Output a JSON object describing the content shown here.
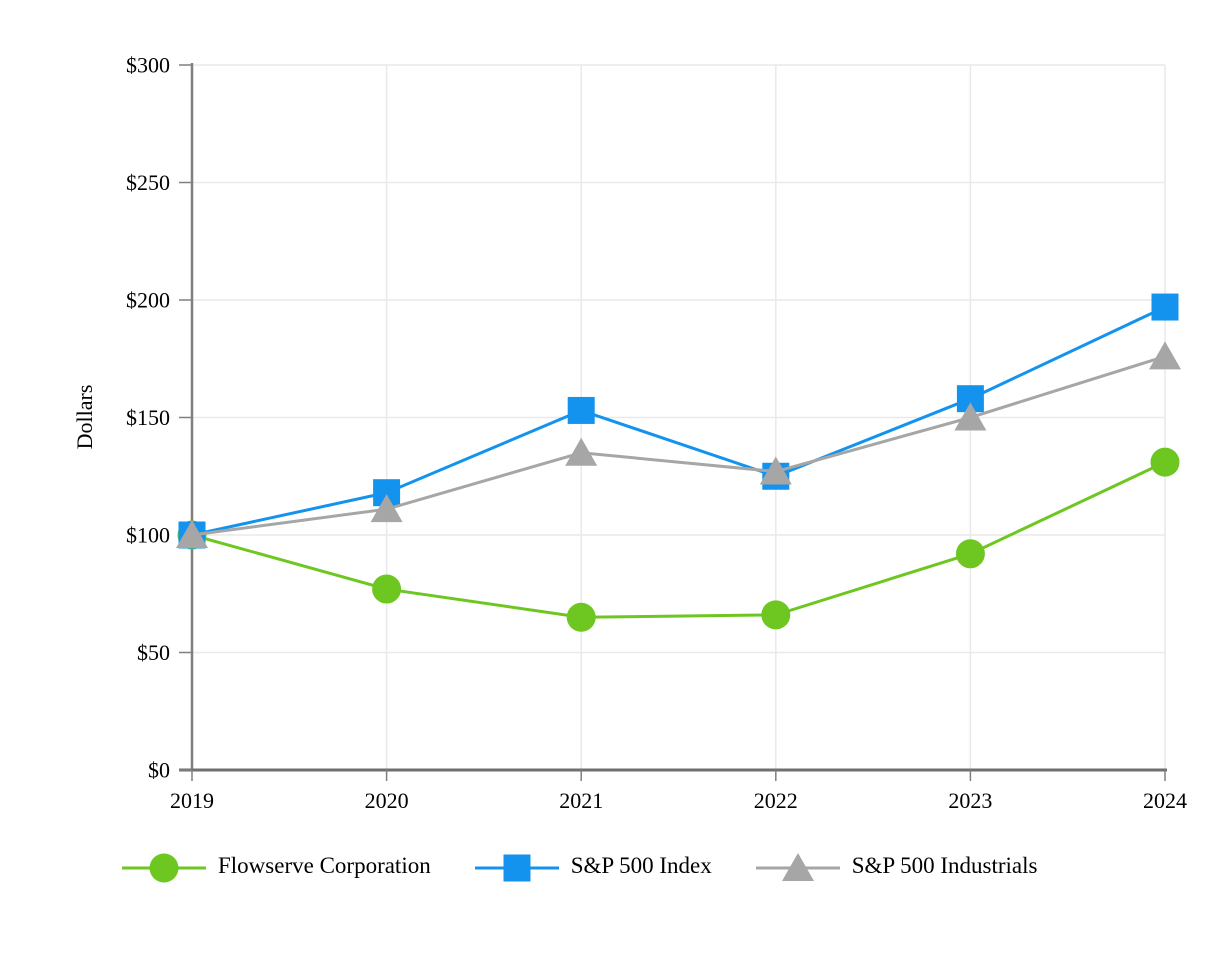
{
  "chart_data": {
    "type": "line",
    "title": "",
    "xlabel": "",
    "ylabel": "Dollars",
    "categories": [
      "2019",
      "2020",
      "2021",
      "2022",
      "2023",
      "2024"
    ],
    "ylim": [
      0,
      300
    ],
    "grid": true,
    "legend_position": "bottom",
    "y_ticks": [
      {
        "value": 0,
        "label": "$0"
      },
      {
        "value": 50,
        "label": "$50"
      },
      {
        "value": 100,
        "label": "$100"
      },
      {
        "value": 150,
        "label": "$150"
      },
      {
        "value": 200,
        "label": "$200"
      },
      {
        "value": 250,
        "label": "$250"
      },
      {
        "value": 300,
        "label": "$300"
      }
    ],
    "series": [
      {
        "name": "Flowserve Corporation",
        "marker": "circle",
        "color": "#6EC621",
        "values": [
          100,
          77,
          65,
          66,
          92,
          131
        ]
      },
      {
        "name": "S&P 500 Index",
        "marker": "square",
        "color": "#1493EE",
        "values": [
          100,
          118,
          153,
          125,
          158,
          197
        ]
      },
      {
        "name": "S&P 500 Industrials",
        "marker": "triangle",
        "color": "#A6A6A6",
        "values": [
          100,
          111,
          135,
          127,
          150,
          176
        ]
      }
    ]
  },
  "colors": {
    "background": "#FFFFFF",
    "axis": "#7F7F7F",
    "x_axis": "#6F6F6F",
    "gridline": "#E9E9E9",
    "text": "#000000"
  }
}
